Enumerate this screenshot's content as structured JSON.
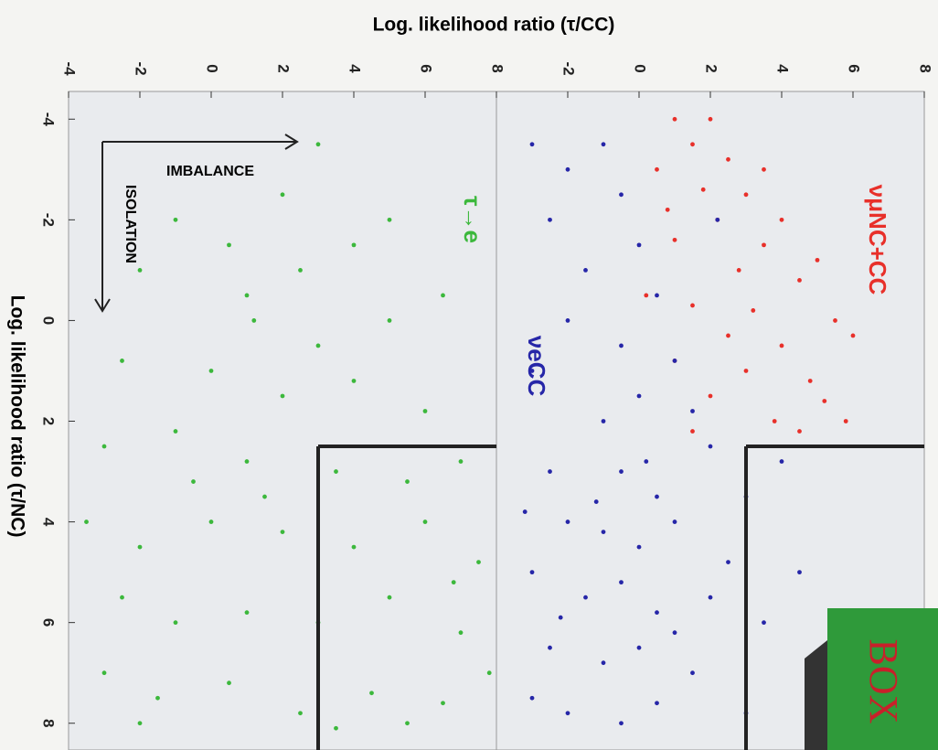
{
  "chart_data": [
    {
      "type": "scatter",
      "xlabel": "Log. likelihood ratio (τ/CC)",
      "ylabel": "Log. likelihood ratio (τ/NC)",
      "xlim": [
        -4,
        8
      ],
      "ylim": [
        -4.55,
        8.35
      ],
      "invert_y": true,
      "xticks": [
        -4,
        -2,
        0,
        2,
        4,
        6,
        8
      ],
      "yticks": [
        -4,
        -2,
        0,
        2,
        4,
        6,
        8
      ],
      "cut": {
        "x": 3,
        "y": 2.5
      },
      "annotations": [
        "IMBALANCE",
        "ISOLATION"
      ],
      "series": [
        {
          "name": "τ→e",
          "color": "#3cb83c",
          "x": [
            -1,
            0.5,
            2,
            3,
            -2,
            1,
            2.5,
            4,
            5,
            1.2,
            3,
            5,
            6.5,
            -2.5,
            0,
            2,
            4,
            6,
            -3,
            -1,
            1,
            3.5,
            5.5,
            7,
            -3.5,
            -2,
            0,
            2,
            4,
            6,
            7.5,
            -2.5,
            -1,
            1,
            3,
            5,
            7,
            -3,
            -1.5,
            0.5,
            2.5,
            4.5,
            6.5,
            -2,
            3.5,
            5.5,
            7.8,
            1.5,
            -0.5,
            6.8
          ],
          "values": [
            -2,
            -1.5,
            -2.5,
            -3.5,
            -1,
            -0.5,
            -1,
            -1.5,
            -2,
            0,
            0.5,
            0,
            -0.5,
            0.8,
            1,
            1.5,
            1.2,
            1.8,
            2.5,
            2.2,
            2.8,
            3,
            3.2,
            2.8,
            4,
            4.5,
            4,
            4.2,
            4.5,
            4,
            4.8,
            5.5,
            6,
            5.8,
            6,
            5.5,
            6.2,
            7,
            7.5,
            7.2,
            7.8,
            7.4,
            7.6,
            8,
            8.1,
            8,
            7,
            3.5,
            3.2,
            5.2
          ]
        }
      ]
    },
    {
      "type": "scatter",
      "xlim": [
        -4,
        8
      ],
      "ylim": [
        -4.55,
        8.35
      ],
      "invert_y": true,
      "xticks": [
        -2,
        0,
        2,
        4,
        6,
        8
      ],
      "cut": {
        "x": 3,
        "y": 2.5
      },
      "annotations": [
        "BOX"
      ],
      "series": [
        {
          "name": "νμNC+CC",
          "color": "#e8302a",
          "x": [
            1,
            2,
            1.5,
            2.5,
            0.5,
            1.8,
            3,
            2.2,
            4,
            1,
            3.5,
            5,
            2.8,
            4.5,
            0.2,
            1.5,
            3.2,
            5.5,
            2.5,
            4,
            6,
            1,
            3,
            4.8,
            2,
            5.2,
            3.8,
            4.5,
            5.8,
            1.5,
            3.5,
            0.8
          ],
          "values": [
            -4,
            -4,
            -3.5,
            -3.2,
            -3,
            -2.6,
            -2.5,
            -2,
            -2,
            -1.6,
            -1.5,
            -1.2,
            -1,
            -0.8,
            -0.5,
            -0.3,
            -0.2,
            0,
            0.3,
            0.5,
            0.3,
            0.8,
            1,
            1.2,
            1.5,
            1.6,
            2,
            2.2,
            2,
            2.2,
            -3,
            -2.2
          ]
        },
        {
          "name": "νeCC",
          "color": "#2626a8",
          "x": [
            -3,
            -2,
            -1,
            -0.5,
            -2.5,
            0,
            -1.5,
            0.5,
            -2,
            -0.5,
            1,
            -3,
            0,
            1.5,
            -1,
            2,
            -2.5,
            -0.5,
            0.5,
            -3.2,
            -2,
            -1,
            0,
            1,
            2.5,
            -3,
            -1.5,
            -0.5,
            0.5,
            2,
            3.5,
            -2.5,
            -1,
            0,
            1.5,
            -3,
            -2,
            -0.5,
            0.5,
            3,
            4.5,
            1,
            -1.2,
            -2.2,
            0.2,
            3,
            4,
            2.2
          ],
          "values": [
            -3.5,
            -3,
            -3.5,
            -2.5,
            -2,
            -1.5,
            -1,
            -0.5,
            0,
            0.5,
            0.8,
            1,
            1.5,
            1.8,
            2,
            2.5,
            3,
            3,
            3.5,
            3.8,
            4,
            4.2,
            4.5,
            4,
            4.8,
            5,
            5.5,
            5.2,
            5.8,
            5.5,
            6,
            6.5,
            6.8,
            6.5,
            7,
            7.5,
            7.8,
            8,
            7.6,
            7.8,
            5,
            6.2,
            3.6,
            5.9,
            2.8,
            3.5,
            2.8,
            -2
          ]
        }
      ]
    }
  ]
}
